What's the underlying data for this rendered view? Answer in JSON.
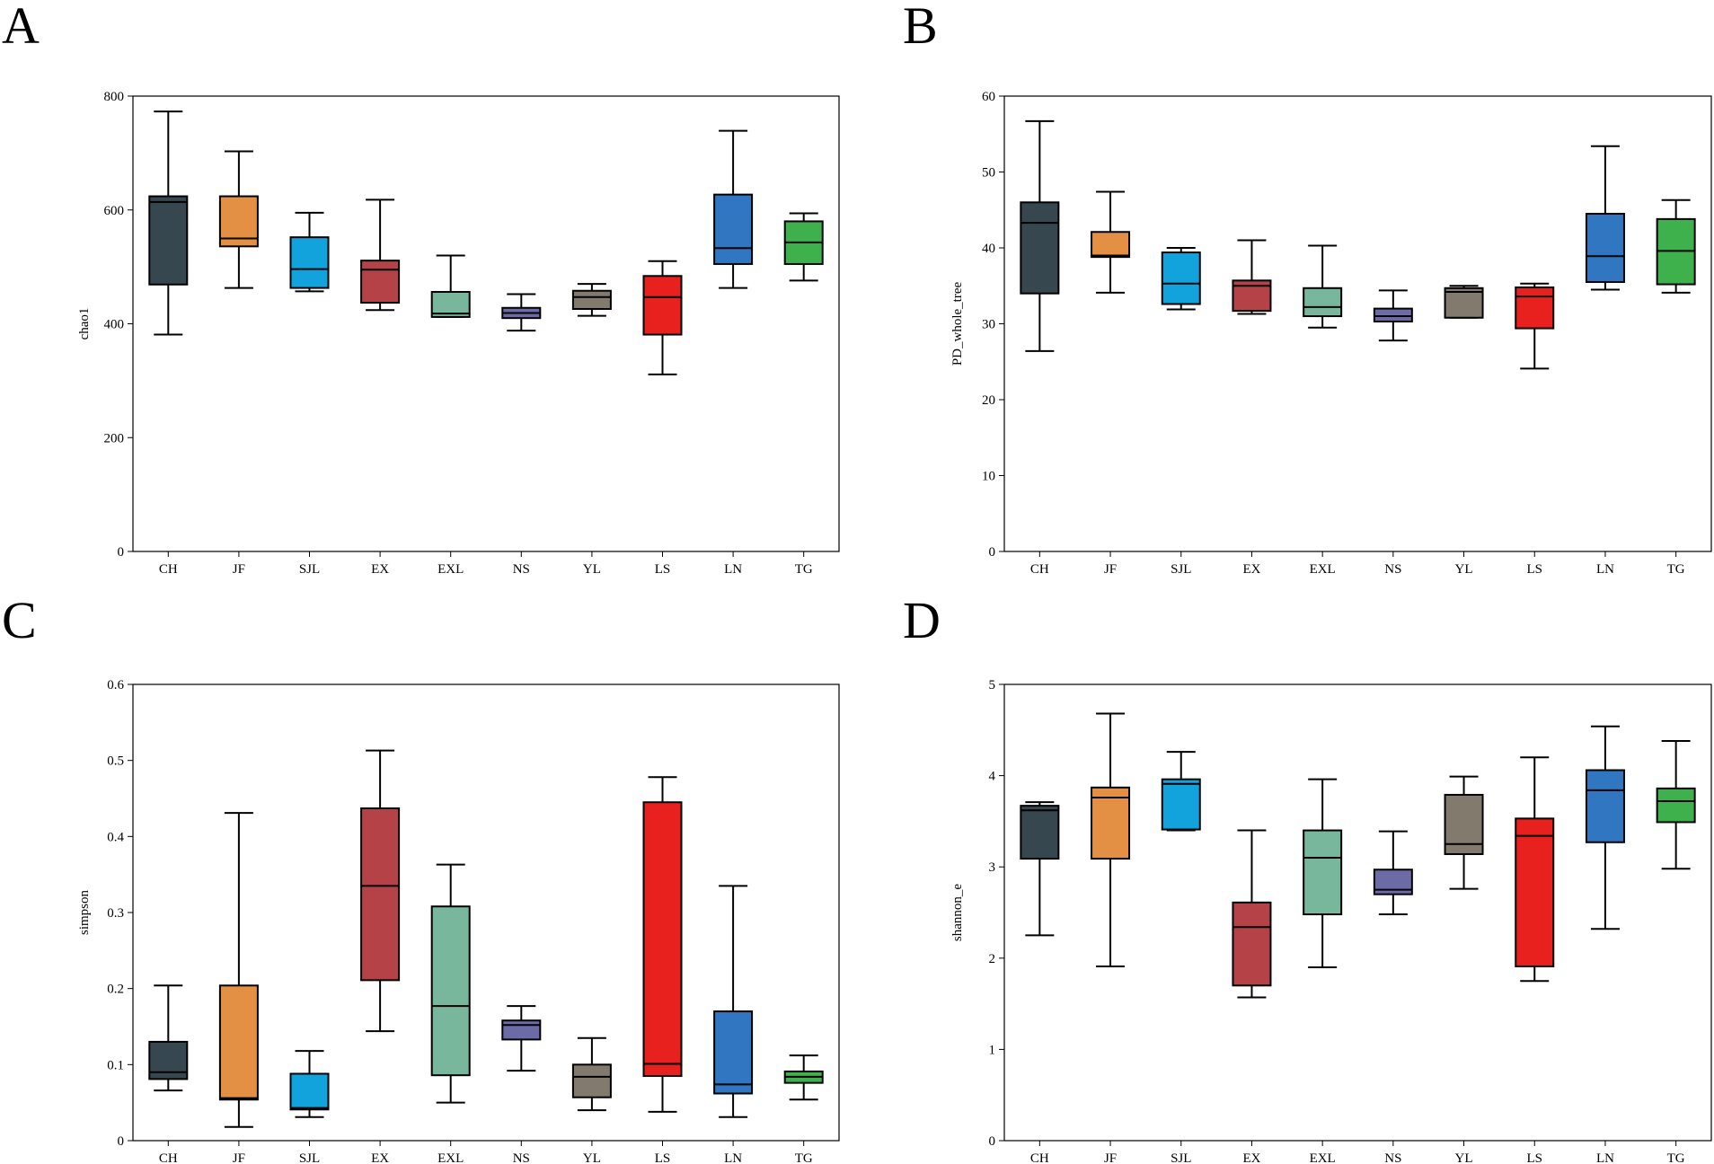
{
  "colors": {
    "CH": "#36474f",
    "JF": "#e39044",
    "SJL": "#13a3dc",
    "EX": "#b54246",
    "EXL": "#78b79c",
    "NS": "#6d6aa8",
    "YL": "#827a6c",
    "LS": "#e8211f",
    "LN": "#3076c0",
    "TG": "#3eb14c"
  },
  "chart_data": [
    {
      "panel": "A",
      "type": "box",
      "ylabel": "chao1",
      "xlabel": "",
      "ylim": [
        0,
        800
      ],
      "yticks": [
        "0",
        "200",
        "400",
        "600",
        "800"
      ],
      "categories": [
        "CH",
        "JF",
        "SJL",
        "EX",
        "EXL",
        "NS",
        "YL",
        "LS",
        "LN",
        "TG"
      ],
      "boxes": [
        {
          "min": 381,
          "q1": 469,
          "median": 614,
          "q3": 624,
          "max": 773
        },
        {
          "min": 463,
          "q1": 536,
          "median": 550,
          "q3": 624,
          "max": 703
        },
        {
          "min": 457,
          "q1": 463,
          "median": 496,
          "q3": 552,
          "max": 595
        },
        {
          "min": 424,
          "q1": 437,
          "median": 495,
          "q3": 511,
          "max": 618
        },
        {
          "min": 412,
          "q1": 412,
          "median": 418,
          "q3": 456,
          "max": 520
        },
        {
          "min": 388,
          "q1": 410,
          "median": 419,
          "q3": 428,
          "max": 452
        },
        {
          "min": 414,
          "q1": 426,
          "median": 447,
          "q3": 458,
          "max": 470
        },
        {
          "min": 311,
          "q1": 381,
          "median": 447,
          "q3": 484,
          "max": 510
        },
        {
          "min": 463,
          "q1": 505,
          "median": 533,
          "q3": 627,
          "max": 739
        },
        {
          "min": 476,
          "q1": 505,
          "median": 543,
          "q3": 580,
          "max": 594
        }
      ]
    },
    {
      "panel": "B",
      "type": "box",
      "ylabel": "PD_whole_tree",
      "xlabel": "",
      "ylim": [
        0,
        60
      ],
      "yticks": [
        "0",
        "10",
        "20",
        "30",
        "40",
        "50",
        "60"
      ],
      "categories": [
        "CH",
        "JF",
        "SJL",
        "EX",
        "EXL",
        "NS",
        "YL",
        "LS",
        "LN",
        "TG"
      ],
      "boxes": [
        {
          "min": 26.4,
          "q1": 34.0,
          "median": 43.3,
          "q3": 46.0,
          "max": 56.7
        },
        {
          "min": 34.1,
          "q1": 38.8,
          "median": 39.0,
          "q3": 42.1,
          "max": 47.4
        },
        {
          "min": 31.9,
          "q1": 32.6,
          "median": 35.3,
          "q3": 39.4,
          "max": 40.0
        },
        {
          "min": 31.3,
          "q1": 31.7,
          "median": 35.0,
          "q3": 35.7,
          "max": 41.0
        },
        {
          "min": 29.5,
          "q1": 31.0,
          "median": 32.2,
          "q3": 34.7,
          "max": 40.3
        },
        {
          "min": 27.8,
          "q1": 30.3,
          "median": 31.0,
          "q3": 32.0,
          "max": 34.4
        },
        {
          "min": 30.8,
          "q1": 30.8,
          "median": 34.2,
          "q3": 34.7,
          "max": 35.0
        },
        {
          "min": 24.1,
          "q1": 29.4,
          "median": 33.6,
          "q3": 34.8,
          "max": 35.3
        },
        {
          "min": 34.5,
          "q1": 35.5,
          "median": 38.9,
          "q3": 44.5,
          "max": 53.4
        },
        {
          "min": 34.1,
          "q1": 35.2,
          "median": 39.6,
          "q3": 43.8,
          "max": 46.3
        }
      ]
    },
    {
      "panel": "C",
      "type": "box",
      "ylabel": "simpson",
      "xlabel": "",
      "ylim": [
        0,
        0.6
      ],
      "yticks": [
        "0",
        "0.1",
        "0.2",
        "0.3",
        "0.4",
        "0.5",
        "0.6"
      ],
      "categories": [
        "CH",
        "JF",
        "SJL",
        "EX",
        "EXL",
        "NS",
        "YL",
        "LS",
        "LN",
        "TG"
      ],
      "boxes": [
        {
          "min": 0.066,
          "q1": 0.081,
          "median": 0.09,
          "q3": 0.13,
          "max": 0.204
        },
        {
          "min": 0.018,
          "q1": 0.054,
          "median": 0.056,
          "q3": 0.204,
          "max": 0.431
        },
        {
          "min": 0.031,
          "q1": 0.041,
          "median": 0.043,
          "q3": 0.088,
          "max": 0.118
        },
        {
          "min": 0.144,
          "q1": 0.211,
          "median": 0.335,
          "q3": 0.437,
          "max": 0.513
        },
        {
          "min": 0.05,
          "q1": 0.086,
          "median": 0.177,
          "q3": 0.308,
          "max": 0.363
        },
        {
          "min": 0.092,
          "q1": 0.133,
          "median": 0.152,
          "q3": 0.158,
          "max": 0.177
        },
        {
          "min": 0.04,
          "q1": 0.057,
          "median": 0.084,
          "q3": 0.1,
          "max": 0.135
        },
        {
          "min": 0.038,
          "q1": 0.085,
          "median": 0.101,
          "q3": 0.445,
          "max": 0.478
        },
        {
          "min": 0.031,
          "q1": 0.062,
          "median": 0.074,
          "q3": 0.17,
          "max": 0.335
        },
        {
          "min": 0.054,
          "q1": 0.076,
          "median": 0.084,
          "q3": 0.091,
          "max": 0.112
        }
      ]
    },
    {
      "panel": "D",
      "type": "box",
      "ylabel": "shannon_e",
      "xlabel": "",
      "ylim": [
        0,
        5
      ],
      "yticks": [
        "0",
        "1",
        "2",
        "3",
        "4",
        "5"
      ],
      "categories": [
        "CH",
        "JF",
        "SJL",
        "EX",
        "EXL",
        "NS",
        "YL",
        "LS",
        "LN",
        "TG"
      ],
      "boxes": [
        {
          "min": 2.25,
          "q1": 3.09,
          "median": 3.62,
          "q3": 3.67,
          "max": 3.71
        },
        {
          "min": 1.91,
          "q1": 3.09,
          "median": 3.76,
          "q3": 3.87,
          "max": 4.68
        },
        {
          "min": 3.4,
          "q1": 3.41,
          "median": 3.91,
          "q3": 3.96,
          "max": 4.26
        },
        {
          "min": 1.57,
          "q1": 1.7,
          "median": 2.34,
          "q3": 2.61,
          "max": 3.4
        },
        {
          "min": 1.9,
          "q1": 2.48,
          "median": 3.1,
          "q3": 3.4,
          "max": 3.96
        },
        {
          "min": 2.48,
          "q1": 2.7,
          "median": 2.75,
          "q3": 2.97,
          "max": 3.39
        },
        {
          "min": 2.76,
          "q1": 3.14,
          "median": 3.25,
          "q3": 3.79,
          "max": 3.99
        },
        {
          "min": 1.75,
          "q1": 1.91,
          "median": 3.34,
          "q3": 3.53,
          "max": 4.2
        },
        {
          "min": 2.32,
          "q1": 3.27,
          "median": 3.84,
          "q3": 4.06,
          "max": 4.54
        },
        {
          "min": 2.98,
          "q1": 3.49,
          "median": 3.72,
          "q3": 3.86,
          "max": 4.38
        }
      ]
    }
  ]
}
